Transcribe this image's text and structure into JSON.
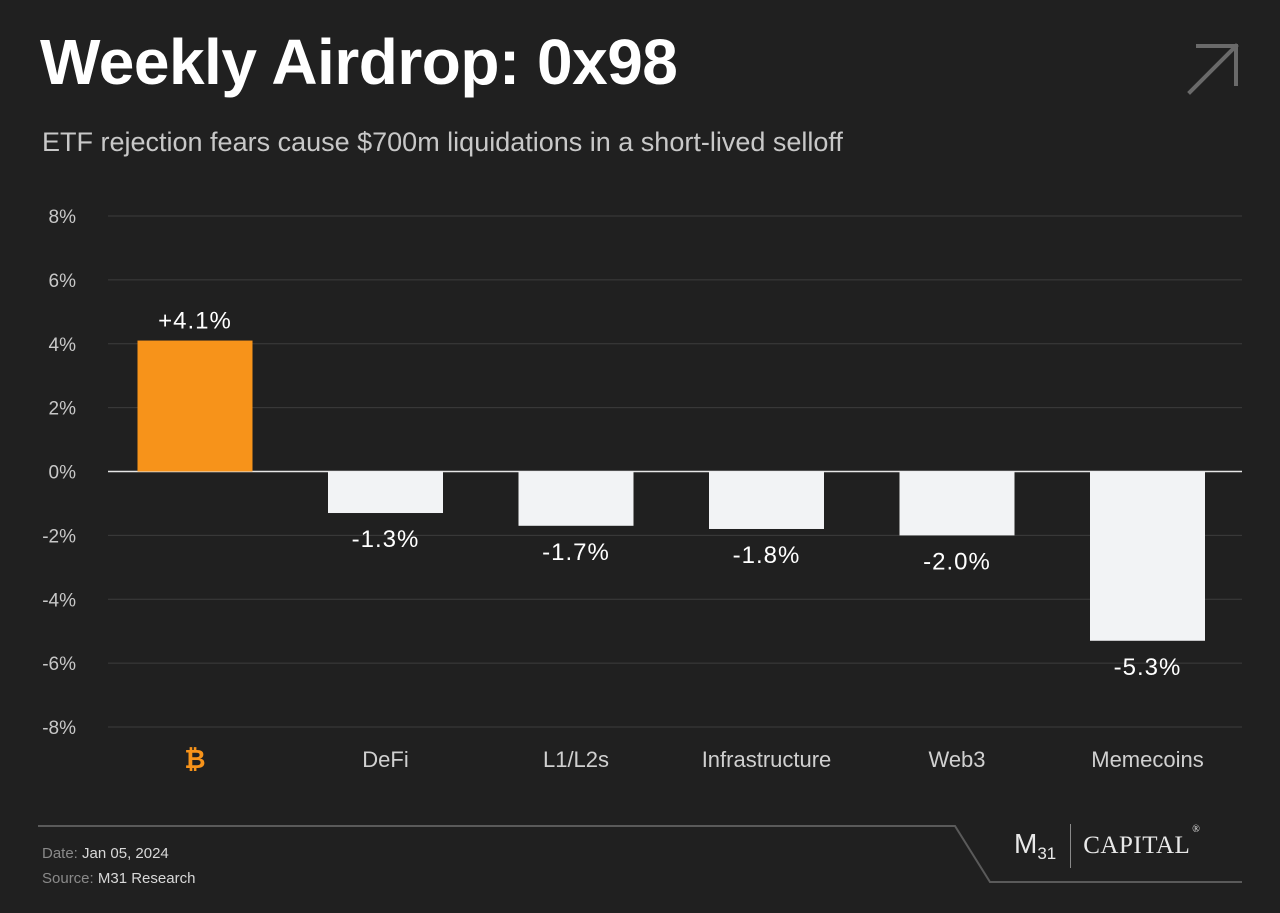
{
  "header": {
    "title": "Weekly Airdrop: 0x98",
    "subtitle": "ETF rejection fears cause $700m liquidations in a short-lived selloff"
  },
  "footer": {
    "date_label": "Date:",
    "date_value": "Jan 05, 2024",
    "source_label": "Source:",
    "source_value": "M31 Research",
    "brand_m": "M",
    "brand_sub": "31",
    "brand_capital": "CAPITAL",
    "brand_reg": "®"
  },
  "icons": {
    "arrow": "arrow-up-right-icon",
    "bitcoin": "bitcoin-icon"
  },
  "colors": {
    "background": "#202020",
    "highlight": "#f7931a",
    "bar": "#f2f3f5",
    "grid": "#3c3c3c"
  },
  "chart_data": {
    "type": "bar",
    "categories": [
      "₿",
      "DeFi",
      "L1/L2s",
      "Infrastructure",
      "Web3",
      "Memecoins"
    ],
    "values": [
      4.1,
      -1.3,
      -1.7,
      -1.8,
      -2.0,
      -5.3
    ],
    "data_labels": [
      "+4.1%",
      "-1.3%",
      "-1.7%",
      "-1.8%",
      "-2.0%",
      "-5.3%"
    ],
    "bar_colors": [
      "#f7931a",
      "#f2f3f5",
      "#f2f3f5",
      "#f2f3f5",
      "#f2f3f5",
      "#f2f3f5"
    ],
    "ylim": [
      -8,
      8
    ],
    "yticks": [
      8,
      6,
      4,
      2,
      0,
      -2,
      -4,
      -6,
      -8
    ],
    "ytick_labels": [
      "8%",
      "6%",
      "4%",
      "2%",
      "0%",
      "-2%",
      "-4%",
      "-6%",
      "-8%"
    ],
    "grid": true,
    "legend": "none"
  }
}
